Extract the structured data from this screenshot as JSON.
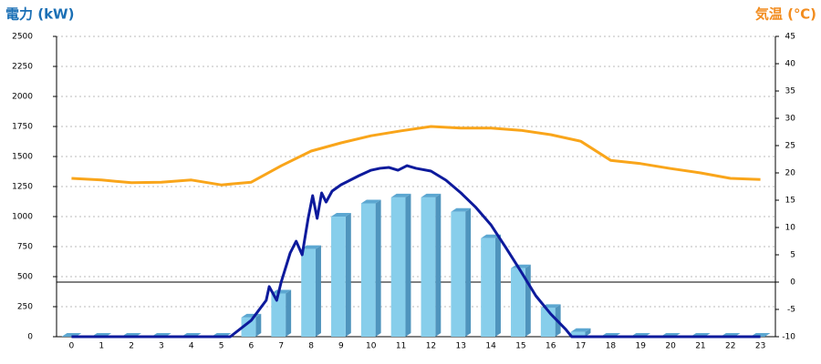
{
  "chart_data": {
    "type": "bar",
    "title_left": "電力 (kW)",
    "title_left_color": "#1a6fb5",
    "title_right": "気温 (℃)",
    "title_right_color": "#f28c1e",
    "categories": [
      "0",
      "1",
      "2",
      "3",
      "4",
      "5",
      "6",
      "7",
      "8",
      "9",
      "10",
      "11",
      "12",
      "13",
      "14",
      "15",
      "16",
      "17",
      "18",
      "19",
      "20",
      "21",
      "22",
      "23"
    ],
    "ylim": [
      0,
      2500
    ],
    "yticks": [
      0,
      250,
      500,
      750,
      1000,
      1250,
      1500,
      1750,
      2000,
      2250,
      2500
    ],
    "y2lim": [
      -10,
      45
    ],
    "y2ticks": [
      -10,
      -5,
      0,
      5,
      10,
      15,
      20,
      25,
      30,
      35,
      40,
      45
    ],
    "grid": true,
    "series": [
      {
        "type": "bar",
        "color": "#87ceeb",
        "values": [
          0,
          0,
          0,
          0,
          0,
          0,
          160,
          360,
          730,
          1000,
          1110,
          1160,
          1160,
          1040,
          820,
          570,
          240,
          40,
          0,
          0,
          0,
          0,
          0,
          0
        ]
      },
      {
        "type": "line",
        "axis": "y2",
        "color": "#f9a51a",
        "values": [
          19,
          18.7,
          18.2,
          18.3,
          18.7,
          17.8,
          18.3,
          21.3,
          24,
          25.5,
          26.8,
          27.7,
          28.5,
          28.2,
          28.2,
          27.8,
          27,
          25.8,
          22.3,
          21.7,
          20.8,
          20,
          19,
          18.8
        ]
      },
      {
        "type": "line",
        "color": "#0d1a9c",
        "x": [
          0,
          5,
          5.3,
          6,
          6.5,
          6.6,
          6.85,
          7,
          7.3,
          7.5,
          7.7,
          7.9,
          8.05,
          8.2,
          8.35,
          8.5,
          8.7,
          9,
          9.3,
          9.6,
          10,
          10.3,
          10.6,
          10.9,
          11.2,
          11.5,
          12,
          12.5,
          13,
          13.5,
          14,
          14.5,
          15,
          15.5,
          16,
          16.5,
          16.7,
          17,
          23
        ],
        "values": [
          0,
          0,
          0,
          136,
          303,
          417,
          303,
          455,
          697,
          795,
          682,
          985,
          1174,
          985,
          1197,
          1121,
          1212,
          1265,
          1303,
          1341,
          1386,
          1402,
          1409,
          1386,
          1424,
          1402,
          1379,
          1303,
          1197,
          1076,
          932,
          742,
          545,
          341,
          189,
          61,
          0,
          0,
          0
        ]
      }
    ]
  }
}
